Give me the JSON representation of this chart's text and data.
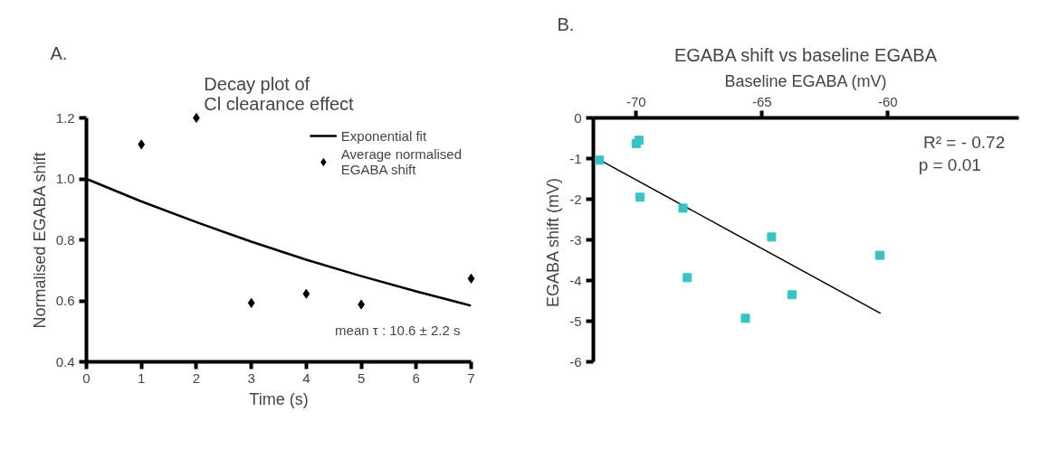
{
  "chart_data": [
    {
      "type": "scatter",
      "title": "Decay plot of\nCl clearance effect",
      "xlabel": "Time (s)",
      "ylabel": "Normalised EGABA shift",
      "xlim": [
        0,
        7
      ],
      "xticks": [
        0,
        1,
        2,
        3,
        4,
        5,
        6,
        7
      ],
      "ylim": [
        0.4,
        1.2
      ],
      "yticks": [
        0.4,
        0.6,
        0.8,
        {
          "value": 1,
          "label": "1.0"
        },
        1.2
      ],
      "grid": false,
      "legend": "top right",
      "annotations": [
        "A.",
        "mean τ : 10.6 ± 2.2 s"
      ],
      "series": [
        {
          "name": "Exponential fit",
          "type": "line",
          "color": "#000000",
          "line_style": "solid",
          "x": [
            0,
            1,
            2,
            3,
            4,
            5,
            6,
            7
          ],
          "values": [
            1.0,
            0.926,
            0.858,
            0.794,
            0.735,
            0.681,
            0.631,
            0.584
          ]
        },
        {
          "name": "Average normalised\nEGABA shift",
          "marker": "diamond",
          "color": "#000000",
          "x": [
            1,
            2,
            3,
            4,
            5,
            7
          ],
          "values": [
            1.113,
            1.2,
            0.593,
            0.623,
            0.588,
            0.673
          ]
        }
      ]
    },
    {
      "type": "scatter",
      "title": "EGABA shift vs baseline EGABA",
      "xlabel": "Baseline EGABA (mV)",
      "ylabel": "EGABA  shift (mV)",
      "xlim": [
        -71.7,
        -54.8
      ],
      "xticks": [
        -70,
        -65,
        -60
      ],
      "ylim": [
        -6,
        0
      ],
      "yticks": [
        -6,
        -5,
        -4,
        -3,
        -2,
        -1,
        0
      ],
      "grid": false,
      "annotations": [
        "B.",
        "R² =  - 0.72",
        "p   =     0.01"
      ],
      "series": [
        {
          "marker": "square",
          "color": "#33c4c4",
          "x": [
            -71.46,
            -70.0,
            -69.89,
            -69.85,
            -68.14,
            -67.97,
            -65.66,
            -64.62,
            -63.81,
            -60.32
          ],
          "values": [
            -1.04,
            -0.63,
            -0.55,
            -1.95,
            -2.22,
            -3.93,
            -4.93,
            -2.93,
            -4.35,
            -3.38
          ]
        },
        {
          "type": "line",
          "color": "#000000",
          "line_style": "solid",
          "x": [
            -71.46,
            -60.29
          ],
          "values": [
            -1.03,
            -4.81
          ]
        }
      ]
    }
  ]
}
